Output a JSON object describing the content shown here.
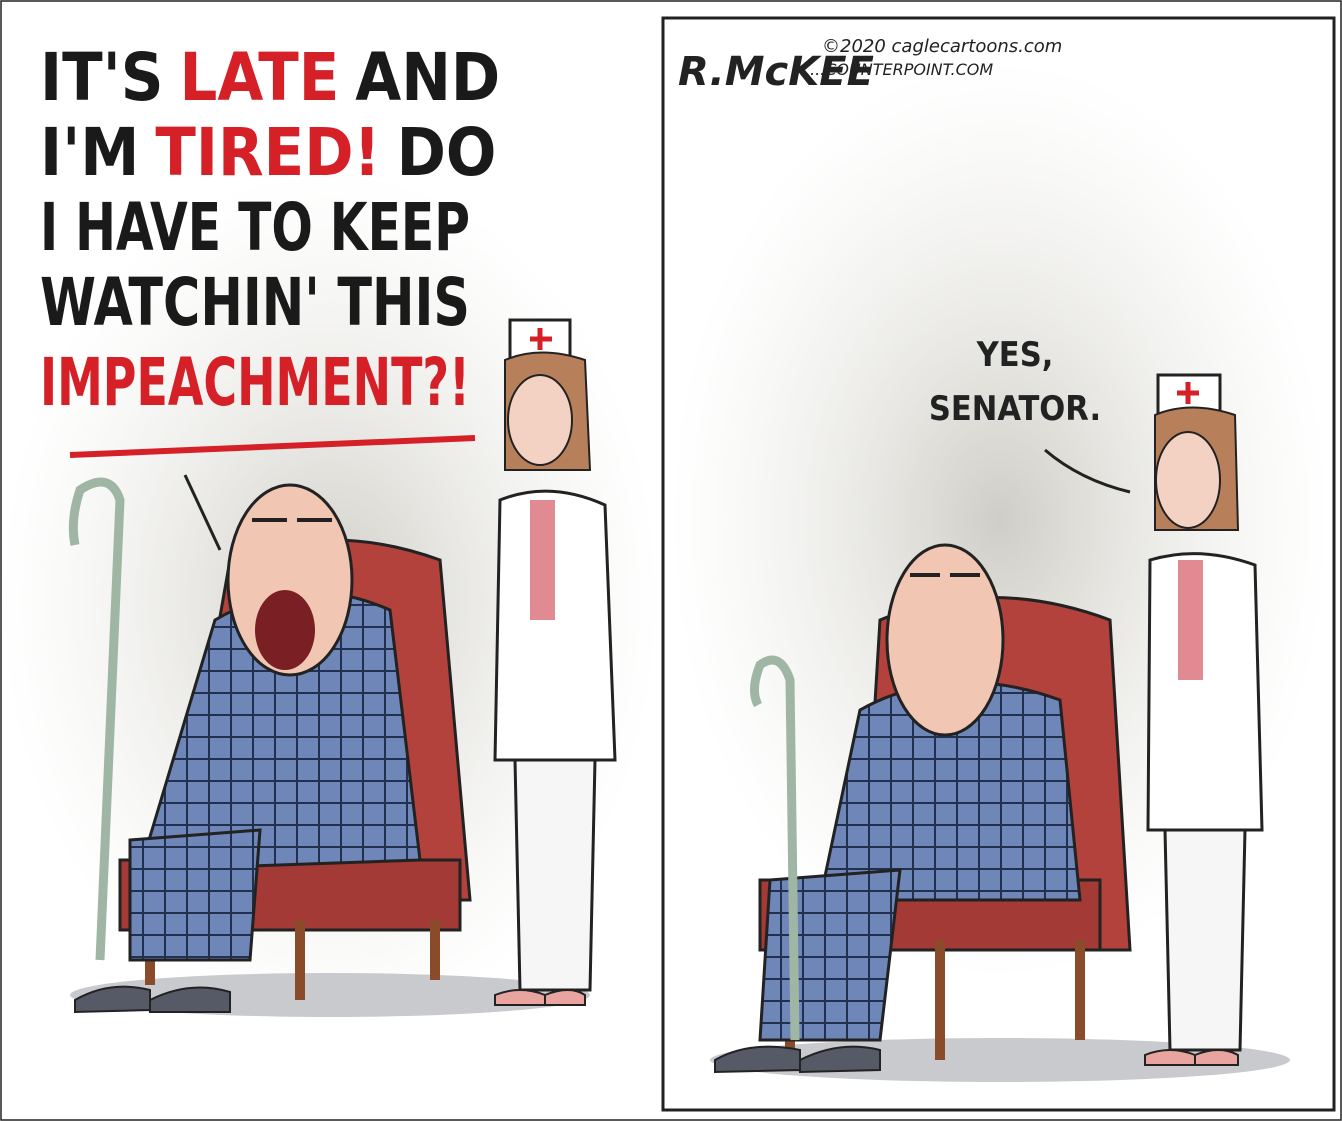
{
  "left_panel": {
    "speech_lines": [
      [
        {
          "text": "IT'S",
          "color": "#1a1a1a"
        },
        {
          "text": "LATE",
          "color": "#d42026"
        },
        {
          "text": "AND",
          "color": "#1a1a1a"
        }
      ],
      [
        {
          "text": "I'M",
          "color": "#1a1a1a"
        },
        {
          "text": "TIRED!",
          "color": "#d42026"
        },
        {
          "text": "DO",
          "color": "#1a1a1a"
        }
      ],
      [
        {
          "text": "I HAVE TO KEEP",
          "color": "#1a1a1a"
        }
      ],
      [
        {
          "text": "WATCHIN' THIS",
          "color": "#1a1a1a"
        }
      ],
      [
        {
          "text": "IMPEACHMENT?!",
          "color": "#d42026"
        }
      ]
    ]
  },
  "right_panel": {
    "signature": "R.McKEE",
    "credit_lines": [
      "©2020 caglecartoons.com",
      "...COUNTERPOINT.COM"
    ],
    "speech_lines": [
      "YES,",
      "SENATOR."
    ]
  }
}
